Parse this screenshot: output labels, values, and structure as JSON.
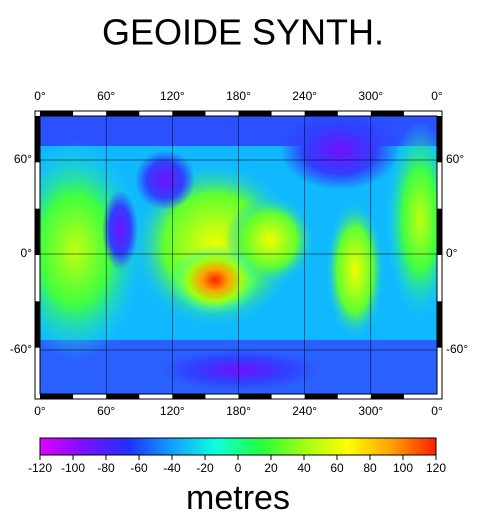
{
  "map": {
    "title": "GEOIDE SYNTH.",
    "lon_labels": [
      "0°",
      "60°",
      "120°",
      "180°",
      "240°",
      "300°",
      "0°"
    ],
    "lat_labels": [
      "60°",
      "0°",
      "-60°"
    ],
    "colorbar": {
      "label": "metres",
      "clim": [
        -120,
        120
      ],
      "ticks": [
        -120,
        -100,
        -80,
        -60,
        -40,
        -20,
        0,
        20,
        40,
        60,
        80,
        100,
        120
      ],
      "colors": [
        "#e000ff",
        "#7a10ff",
        "#2030ff",
        "#10a0ff",
        "#10ffe0",
        "#20ff40",
        "#a0ff10",
        "#ffff00",
        "#ffa000",
        "#ff2000"
      ]
    }
  }
}
